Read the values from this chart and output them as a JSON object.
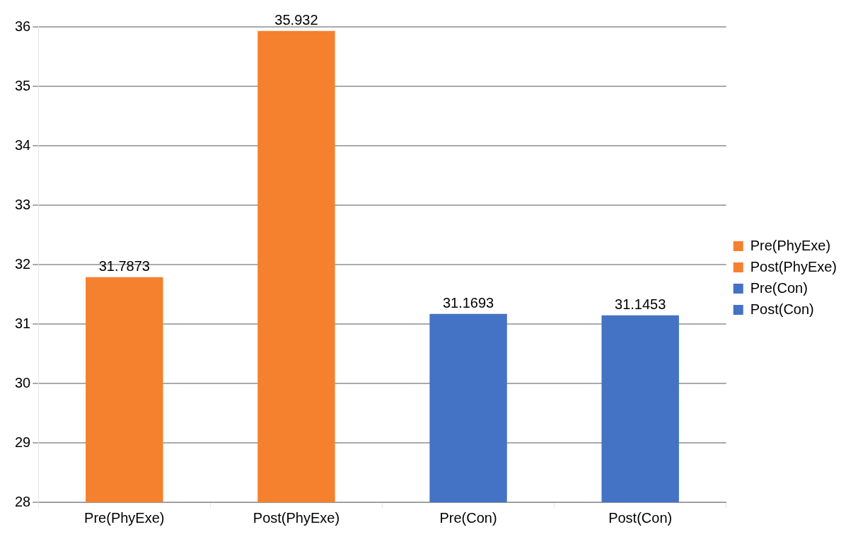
{
  "chart_data": {
    "type": "bar",
    "categories": [
      "Pre(PhyExe)",
      "Post(PhyExe)",
      "Pre(Con)",
      "Post(Con)"
    ],
    "series": [
      {
        "name": "Pre(PhyExe)",
        "color": "#f5802e",
        "values": [
          31.7873,
          null,
          null,
          null
        ]
      },
      {
        "name": "Post(PhyExe)",
        "color": "#f5802e",
        "values": [
          null,
          35.932,
          null,
          null
        ]
      },
      {
        "name": "Pre(Con)",
        "color": "#4472c4",
        "values": [
          null,
          null,
          31.1693,
          null
        ]
      },
      {
        "name": "Post(Con)",
        "color": "#4472c4",
        "values": [
          null,
          null,
          null,
          31.1453
        ]
      }
    ],
    "ylim": [
      28,
      36
    ],
    "yticks": [
      28,
      29,
      30,
      31,
      32,
      33,
      34,
      35,
      36
    ],
    "grid": true,
    "legend": "right",
    "data_labels": true
  }
}
